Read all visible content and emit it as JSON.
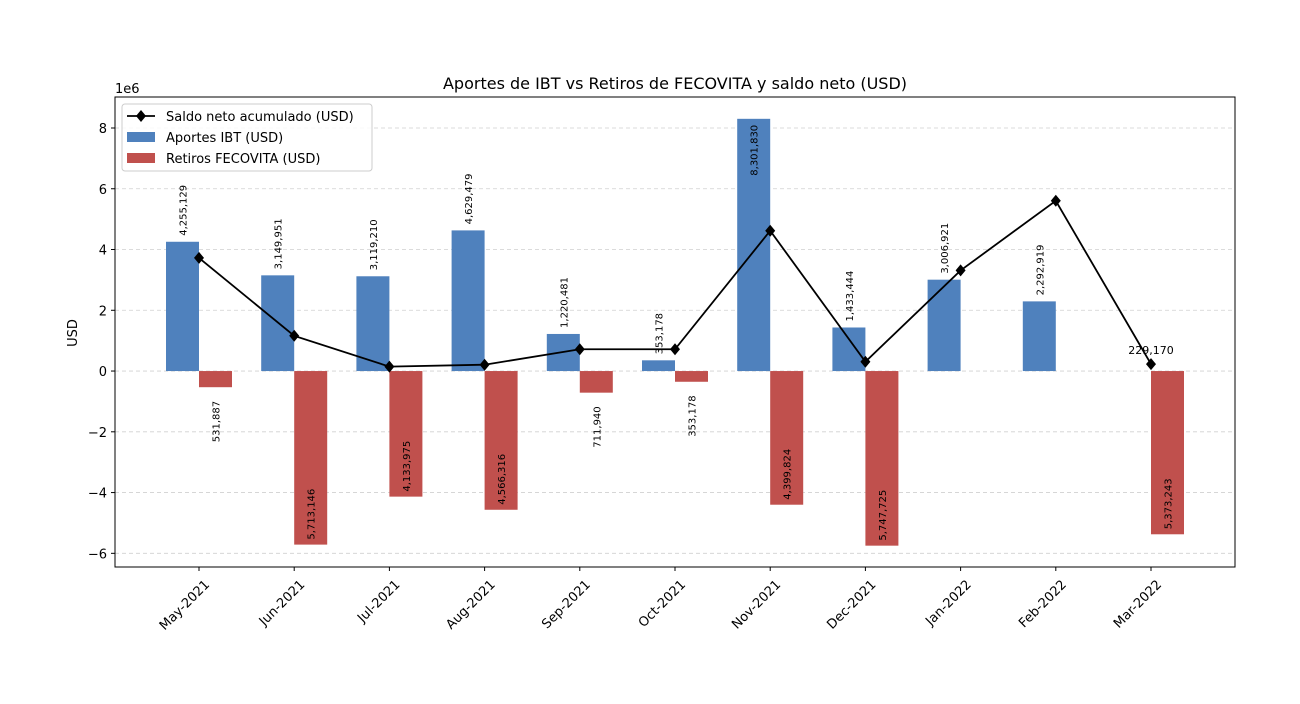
{
  "chart_data": {
    "type": "bar",
    "title": "Aportes de IBT vs Retiros de FECOVITA y saldo neto (USD)",
    "xlabel": "",
    "ylabel": "USD",
    "y_offset_label": "1e6",
    "ylim": [
      -6450000,
      9020000
    ],
    "yticks": [
      -6000000,
      -4000000,
      -2000000,
      0,
      2000000,
      4000000,
      6000000,
      8000000
    ],
    "ytick_labels": [
      "−6",
      "−4",
      "−2",
      "0",
      "2",
      "4",
      "6",
      "8"
    ],
    "grid": true,
    "legend_position": "top-left",
    "categories": [
      "May-2021",
      "Jun-2021",
      "Jul-2021",
      "Aug-2021",
      "Sep-2021",
      "Oct-2021",
      "Nov-2021",
      "Dec-2021",
      "Jan-2022",
      "Feb-2022",
      "Mar-2022"
    ],
    "series": [
      {
        "name": "Saldo neto acumulado (USD)",
        "type": "line",
        "color": "#000000",
        "marker": "diamond",
        "values": [
          3723242,
          1160047,
          145282,
          208445,
          716986,
          716986,
          4618992,
          304711,
          3311632,
          5604551,
          229170
        ],
        "point_labels": [
          "",
          "",
          "",
          "",
          "",
          "",
          "",
          "",
          "",
          "",
          "229,170"
        ]
      },
      {
        "name": "Aportes IBT (USD)",
        "type": "bar",
        "color": "#4f81bd",
        "values": [
          4255129,
          3149951,
          3119210,
          4629479,
          1220481,
          353178,
          8301830,
          1433444,
          3006921,
          2292919,
          0
        ],
        "labels": [
          "4,255,129",
          "3,149,951",
          "3,119,210",
          "4,629,479",
          "1,220,481",
          "353,178",
          "8,301,830",
          "1,433,444",
          "3,006,921",
          "2,292,919",
          ""
        ]
      },
      {
        "name": "Retiros FECOVITA (USD)",
        "type": "bar",
        "color": "#c0504d",
        "values": [
          -531887,
          -5713146,
          -4133975,
          -4566316,
          -711940,
          -353178,
          -4399824,
          -5747725,
          0,
          0,
          -5373243
        ],
        "labels": [
          "531,887",
          "5,713,146",
          "4,133,975",
          "4,566,316",
          "711,940",
          "353,178",
          "4,399,824",
          "5,747,725",
          "",
          "",
          "5,373,243"
        ]
      }
    ]
  }
}
